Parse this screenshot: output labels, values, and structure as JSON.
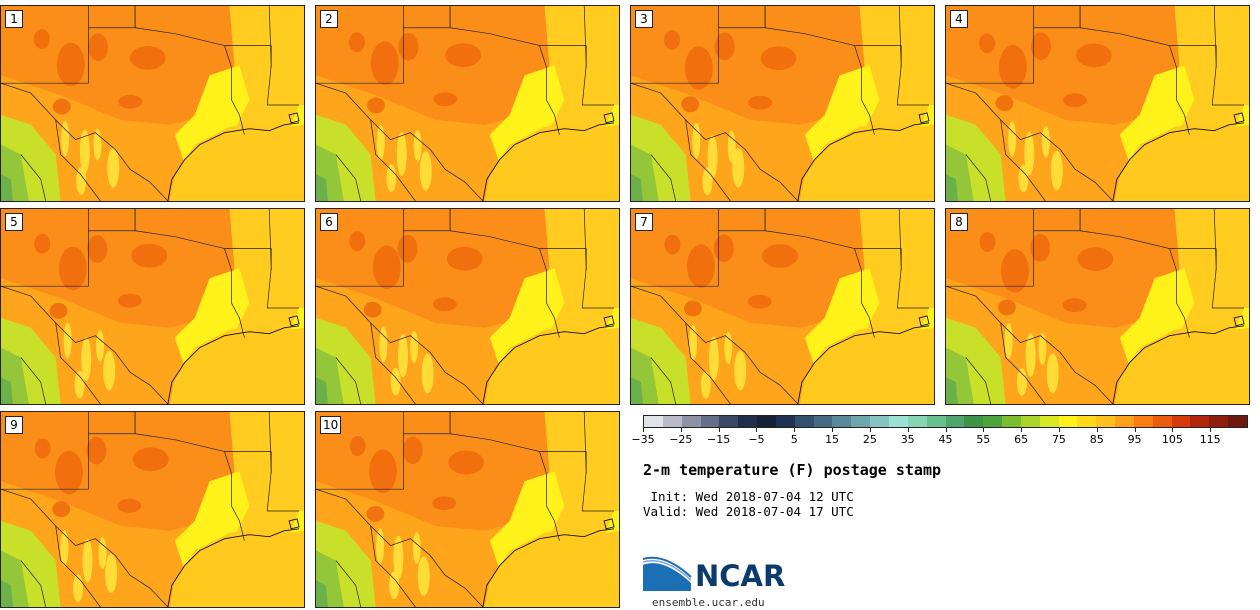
{
  "panels": [
    {
      "label": "1"
    },
    {
      "label": "2"
    },
    {
      "label": "3"
    },
    {
      "label": "4"
    },
    {
      "label": "5"
    },
    {
      "label": "6"
    },
    {
      "label": "7"
    },
    {
      "label": "8"
    },
    {
      "label": "9"
    },
    {
      "label": "10"
    }
  ],
  "colorbar": {
    "colors": [
      "#e2e2ea",
      "#b9bbc9",
      "#8d93a6",
      "#64708a",
      "#3a4a66",
      "#1f2f4a",
      "#142238",
      "#1f3350",
      "#33506d",
      "#466b83",
      "#5a8899",
      "#6fa5ad",
      "#87c3c2",
      "#9be0d5",
      "#86d6b4",
      "#69c08f",
      "#4ea66e",
      "#3d9446",
      "#4ea33a",
      "#7bbd2f",
      "#aad42b",
      "#d9e824",
      "#fff21a",
      "#ffd81c",
      "#ffbf1c",
      "#ffa01a",
      "#fa7c12",
      "#ee5a0e",
      "#d73b0c",
      "#b3260e",
      "#8f1e10",
      "#6e180f"
    ],
    "ticks": [
      "−35",
      "−25",
      "−15",
      "−5",
      "5",
      "15",
      "25",
      "35",
      "45",
      "55",
      "65",
      "75",
      "85",
      "95",
      "105",
      "115"
    ]
  },
  "title": "2-m temperature (F) postage stamp",
  "init_line": " Init: Wed 2018-07-04 12 UTC",
  "valid_line": "Valid: Wed 2018-07-04 17 UTC",
  "logo_text": "NCAR",
  "url": "ensemble.ucar.edu"
}
